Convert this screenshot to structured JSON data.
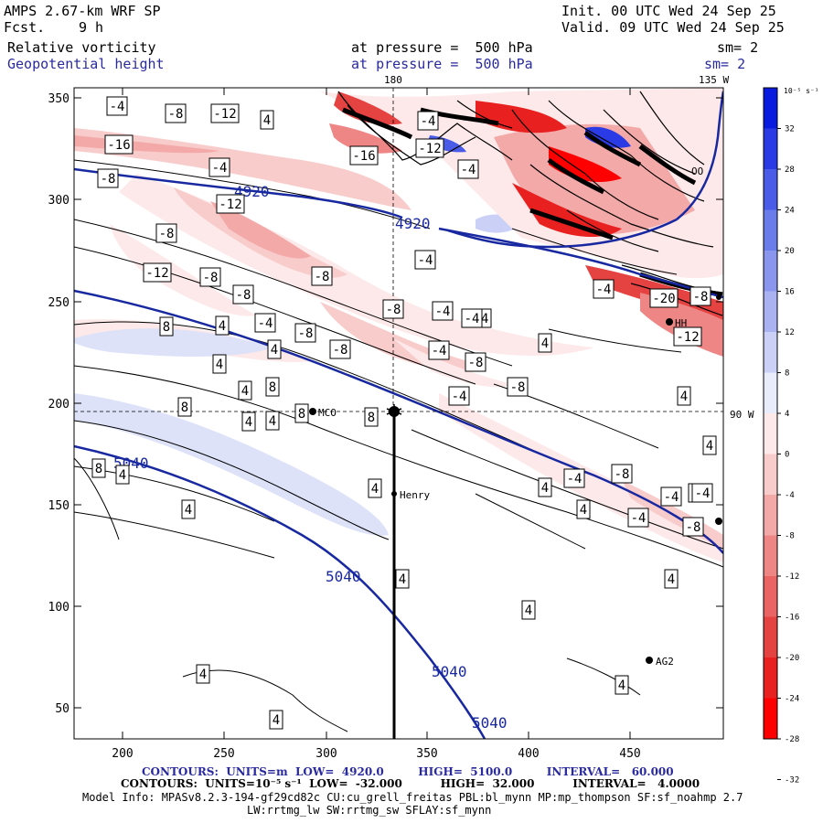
{
  "header": {
    "model": "AMPS 2.67-km WRF SP",
    "fcst_label": "Fcst.",
    "fcst_value": "9 h",
    "init": "Init. 00 UTC Wed 24 Sep 25",
    "valid": "Valid. 09 UTC Wed 24 Sep 25",
    "field1_name": "Relative vorticity",
    "field1_level": "at pressure =  500 hPa",
    "field1_sm": "sm= 2",
    "field2_name": "Geopotential height",
    "field2_level": "at pressure =  500 hPa",
    "field2_sm": "sm= 2"
  },
  "meridians": {
    "top_180": "180",
    "top_135w": "135 W",
    "right_90w": "90 W"
  },
  "axes": {
    "x_ticks": [
      "200",
      "250",
      "300",
      "350",
      "400",
      "450"
    ],
    "y_ticks": [
      "350",
      "300",
      "250",
      "200",
      "150",
      "100",
      "50"
    ]
  },
  "colorbar": {
    "unit": "10⁻⁵ s⁻¹",
    "labels": [
      "32",
      "28",
      "24",
      "20",
      "16",
      "12",
      "8",
      "4",
      "0",
      "-4",
      "-8",
      "-12",
      "-16",
      "-20",
      "-24",
      "-28",
      "-32"
    ],
    "colors": {
      "pos": [
        "#0a1be0",
        "#2a3be6",
        "#4a5be8",
        "#6a7bea",
        "#8a95ee",
        "#aab2f2",
        "#cad0f6",
        "#e8ecfb"
      ],
      "neg": [
        "#fde9e9",
        "#f9cccc",
        "#f4a9a9",
        "#ef8686",
        "#ea6464",
        "#e54242",
        "#e82020",
        "#ff0000"
      ]
    }
  },
  "stations": {
    "mco": "MCO",
    "henry": "Henry",
    "ag2": "AG2",
    "hh": "HH",
    "ooo": "OO"
  },
  "height_labels": [
    "4920",
    "4920",
    "5040",
    "5040",
    "5040",
    "5040"
  ],
  "vort_labels": [
    "-4",
    "-8",
    "-12",
    "4",
    "-16",
    "-4",
    "-16",
    "-12",
    "-4",
    "-8",
    "-4",
    "-12",
    "-8",
    "-4",
    "-8",
    "-12",
    "-8",
    "-8",
    "-4",
    "4",
    "-4",
    "-4",
    "-8",
    "-20",
    "-8",
    "-12",
    "8",
    "4",
    "-8",
    "4",
    "-8",
    "4",
    "-4",
    "-8",
    "-4",
    "8",
    "4",
    "8",
    "-8",
    "-4",
    "-4",
    "8",
    "4",
    "4",
    "8",
    "8",
    "4",
    "4",
    "4",
    "-4",
    "-4",
    "-8",
    "4",
    "4",
    "4",
    "8",
    "-8",
    "8",
    "-4",
    "-4",
    "-4",
    "4",
    "-4",
    "-8",
    "4",
    "4",
    "4",
    "4",
    "4",
    "4",
    "4",
    "4",
    "4"
  ],
  "footer": {
    "contours1": "CONTOURS:  UNITS=m  LOW=  4920.0         HIGH=  5100.0         INTERVAL=   60.000",
    "contours2": "CONTOURS:  UNITS=10⁻⁵ s⁻¹  LOW=  -32.000          HIGH=  32.000          INTERVAL=   4.0000",
    "model_info": "Model Info: MPASv8.2.3-194-gf29cd82c CU:cu_grell_freitas PBL:bl_mynn MP:mp_thompson SF:sf_noahmp 2.7",
    "model_info2": "LW:rrtmg_lw SW:rrtmg_sw SFLAY:sf_mynn"
  }
}
